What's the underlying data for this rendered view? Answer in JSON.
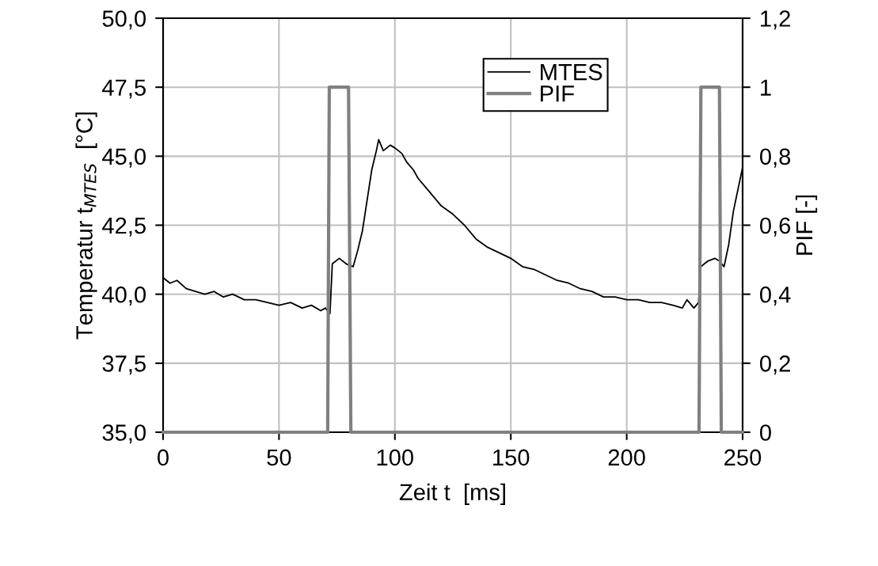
{
  "chart_data": {
    "type": "line",
    "xlabel": "Zeit t  [ms]",
    "ylabel": "Temperatur t$_{MTES}$  [°C]",
    "y2label": "PIF [-]",
    "xlim": [
      0,
      250
    ],
    "xticks": [
      0,
      50,
      100,
      150,
      200,
      250
    ],
    "ylim": [
      35,
      50
    ],
    "yticks": [
      {
        "value": 35,
        "label": "35,0"
      },
      {
        "value": 37.5,
        "label": "37,5"
      },
      {
        "value": 40,
        "label": "40,0"
      },
      {
        "value": 42.5,
        "label": "42,5"
      },
      {
        "value": 45,
        "label": "45,0"
      },
      {
        "value": 47.5,
        "label": "47,5"
      },
      {
        "value": 50,
        "label": "50,0"
      }
    ],
    "y2lim": [
      0,
      1.2
    ],
    "y2ticks": [
      0,
      {
        "value": 0.2,
        "label": "0,2"
      },
      {
        "value": 0.4,
        "label": "0,4"
      },
      {
        "value": 0.6,
        "label": "0,6"
      },
      {
        "value": 0.8,
        "label": "0,8"
      },
      1,
      {
        "value": 1.2,
        "label": "1,2"
      }
    ],
    "grid": true,
    "legend": "top center",
    "line_style": "solid",
    "marker": "none",
    "series": [
      {
        "name": "MTES",
        "color": "#000000",
        "x": [
          0,
          3,
          6,
          10,
          14,
          18,
          22,
          26,
          30,
          35,
          40,
          45,
          50,
          55,
          60,
          64,
          68,
          70,
          72,
          73,
          76,
          79,
          82,
          84,
          86,
          88,
          90,
          92,
          93,
          95,
          98,
          100,
          103,
          105,
          108,
          110,
          115,
          120,
          125,
          130,
          135,
          140,
          145,
          150,
          155,
          160,
          165,
          170,
          175,
          180,
          185,
          190,
          195,
          200,
          205,
          210,
          215,
          220,
          224,
          226,
          229,
          231,
          232,
          235,
          238,
          240,
          242,
          244,
          246,
          248,
          250
        ],
        "values": [
          40.6,
          40.4,
          40.5,
          40.2,
          40.1,
          40.0,
          40.1,
          39.9,
          40.0,
          39.8,
          39.8,
          39.7,
          39.6,
          39.7,
          39.5,
          39.6,
          39.4,
          39.5,
          39.3,
          41.1,
          41.3,
          41.1,
          41.0,
          41.6,
          42.3,
          43.4,
          44.5,
          45.2,
          45.6,
          45.2,
          45.4,
          45.3,
          45.1,
          44.8,
          44.5,
          44.2,
          43.7,
          43.2,
          42.9,
          42.5,
          42.0,
          41.7,
          41.5,
          41.3,
          41.0,
          40.9,
          40.7,
          40.5,
          40.4,
          40.2,
          40.1,
          39.9,
          39.9,
          39.8,
          39.8,
          39.7,
          39.7,
          39.6,
          39.5,
          39.8,
          39.5,
          39.7,
          41.0,
          41.2,
          41.3,
          41.2,
          41.0,
          41.8,
          43.0,
          43.8,
          44.6
        ]
      },
      {
        "name": "PIF",
        "color": "#808080",
        "axis": "y2",
        "x": [
          0,
          71,
          71.7,
          80,
          81,
          231.2,
          232,
          240,
          240.8,
          250
        ],
        "values": [
          0,
          0,
          1,
          1,
          0,
          0,
          1,
          1,
          0,
          0
        ]
      }
    ]
  }
}
